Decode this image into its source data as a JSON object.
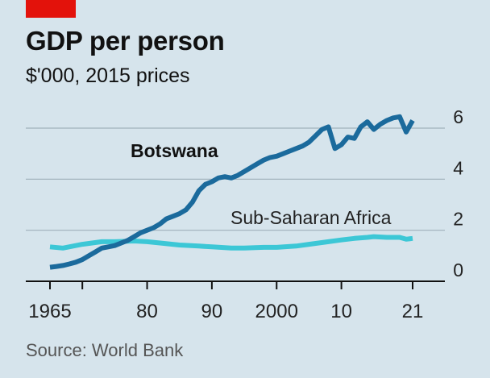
{
  "title": "GDP per person",
  "subtitle": "$'000, 2015 prices",
  "source": "Source: World Bank",
  "colors": {
    "background": "#d6e4ec",
    "botswana": "#1b6a9c",
    "ssa": "#3cc7d6",
    "grid": "#9fb0ba",
    "brand_tag": "#e3120b"
  },
  "chart_data": {
    "type": "line",
    "title": "GDP per person",
    "subtitle": "$'000, 2015 prices",
    "xlim": [
      1965,
      2021
    ],
    "ylim": [
      0,
      6
    ],
    "y_ticks": [
      0,
      2,
      4,
      6
    ],
    "y_tick_labels": [
      "0",
      "2",
      "4",
      "6"
    ],
    "x_ticks": [
      1965,
      1970,
      1980,
      1990,
      2000,
      2010,
      2021
    ],
    "x_tick_labels": [
      "1965",
      "",
      "80",
      "90",
      "2000",
      "10",
      "21"
    ],
    "grid": true,
    "series": [
      {
        "name": "Botswana",
        "color": "#1b6a9c",
        "x": [
          1965,
          1966,
          1967,
          1968,
          1969,
          1970,
          1971,
          1972,
          1973,
          1974,
          1975,
          1976,
          1977,
          1978,
          1979,
          1980,
          1981,
          1982,
          1983,
          1984,
          1985,
          1986,
          1987,
          1988,
          1989,
          1990,
          1991,
          1992,
          1993,
          1994,
          1995,
          1996,
          1997,
          1998,
          1999,
          2000,
          2001,
          2002,
          2003,
          2004,
          2005,
          2006,
          2007,
          2008,
          2009,
          2010,
          2011,
          2012,
          2013,
          2014,
          2015,
          2016,
          2017,
          2018,
          2019,
          2020,
          2021
        ],
        "values": [
          0.55,
          0.58,
          0.62,
          0.68,
          0.75,
          0.85,
          1.0,
          1.15,
          1.3,
          1.35,
          1.4,
          1.5,
          1.6,
          1.75,
          1.9,
          2.0,
          2.1,
          2.25,
          2.45,
          2.55,
          2.65,
          2.8,
          3.1,
          3.55,
          3.8,
          3.9,
          4.05,
          4.1,
          4.05,
          4.15,
          4.3,
          4.45,
          4.6,
          4.75,
          4.85,
          4.9,
          5.0,
          5.1,
          5.2,
          5.3,
          5.45,
          5.7,
          5.95,
          6.05,
          5.2,
          5.35,
          5.65,
          5.6,
          6.05,
          6.25,
          5.95,
          6.15,
          6.3,
          6.4,
          6.45,
          5.85,
          6.3
        ]
      },
      {
        "name": "Sub-Saharan Africa",
        "color": "#3cc7d6",
        "x": [
          1965,
          1967,
          1970,
          1973,
          1975,
          1978,
          1980,
          1982,
          1985,
          1988,
          1990,
          1993,
          1995,
          1998,
          2000,
          2003,
          2005,
          2008,
          2010,
          2012,
          2014,
          2015,
          2017,
          2019,
          2020,
          2021
        ],
        "values": [
          1.35,
          1.3,
          1.45,
          1.55,
          1.55,
          1.58,
          1.55,
          1.5,
          1.42,
          1.38,
          1.35,
          1.3,
          1.3,
          1.33,
          1.33,
          1.38,
          1.45,
          1.55,
          1.62,
          1.68,
          1.72,
          1.75,
          1.72,
          1.72,
          1.65,
          1.68
        ]
      }
    ]
  }
}
